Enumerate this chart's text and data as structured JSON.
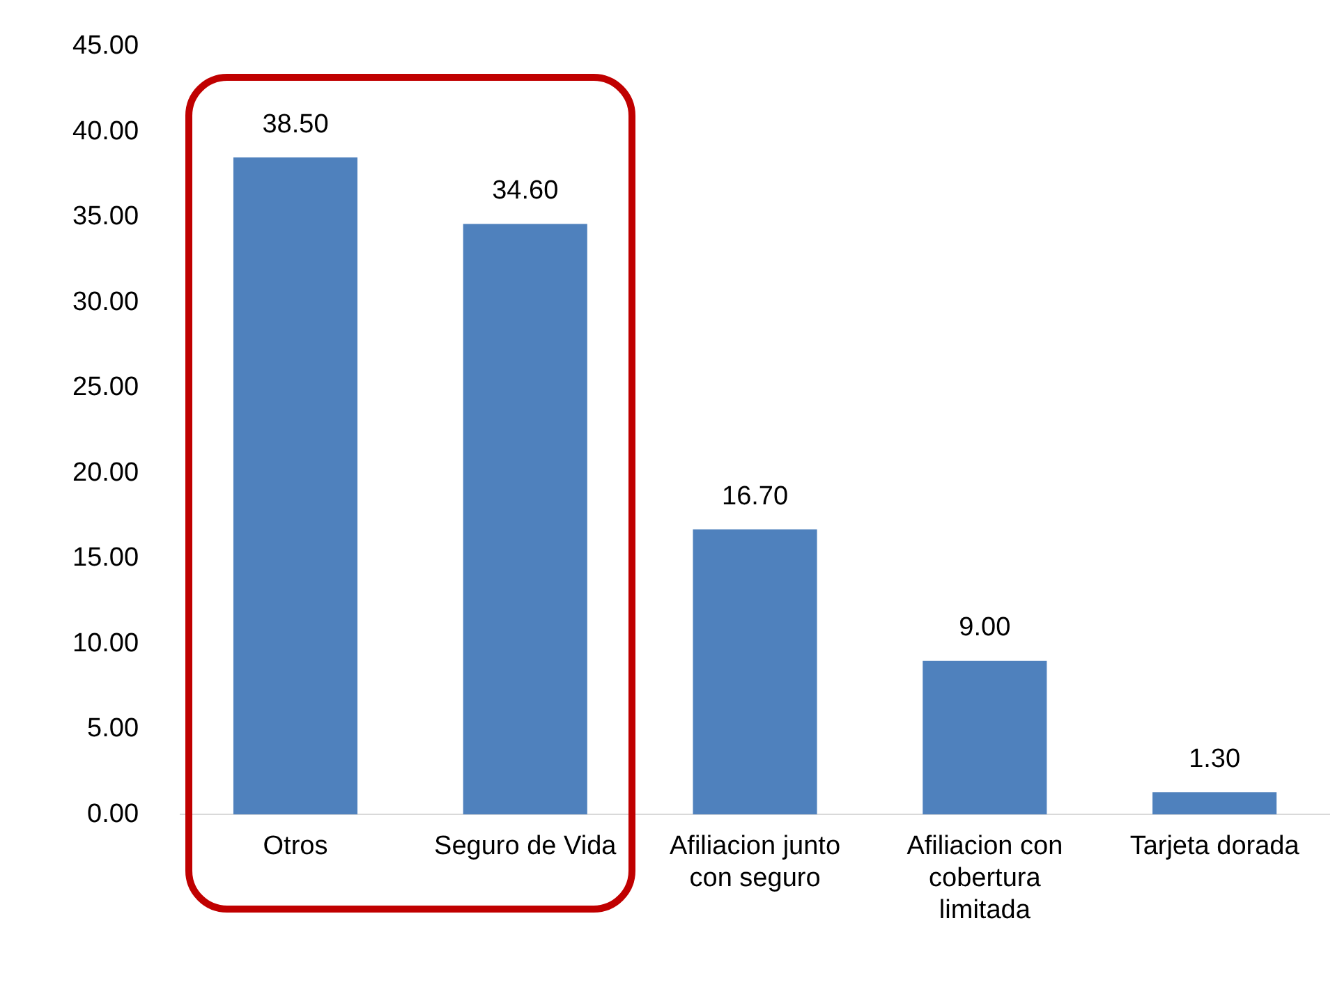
{
  "chart_data": {
    "type": "bar",
    "categories": [
      "Otros",
      "Seguro de Vida",
      "Afiliacion junto con seguro",
      "Afiliacion con cobertura limitada",
      "Tarjeta dorada"
    ],
    "values": [
      38.5,
      34.6,
      16.7,
      9.0,
      1.3
    ],
    "value_labels": [
      "38.50",
      "34.60",
      "16.70",
      "9.00",
      "1.30"
    ],
    "color": "#4f81bd",
    "ylim": [
      0,
      45
    ],
    "yticks": [
      {
        "value": 0,
        "label": "0.00"
      },
      {
        "value": 5,
        "label": "5.00"
      },
      {
        "value": 10,
        "label": "10.00"
      },
      {
        "value": 15,
        "label": "15.00"
      },
      {
        "value": 20,
        "label": "20.00"
      },
      {
        "value": 25,
        "label": "25.00"
      },
      {
        "value": 30,
        "label": "30.00"
      },
      {
        "value": 35,
        "label": "35.00"
      },
      {
        "value": 40,
        "label": "40.00"
      },
      {
        "value": 45,
        "label": "45.00"
      }
    ],
    "grid": false,
    "legend": false
  }
}
